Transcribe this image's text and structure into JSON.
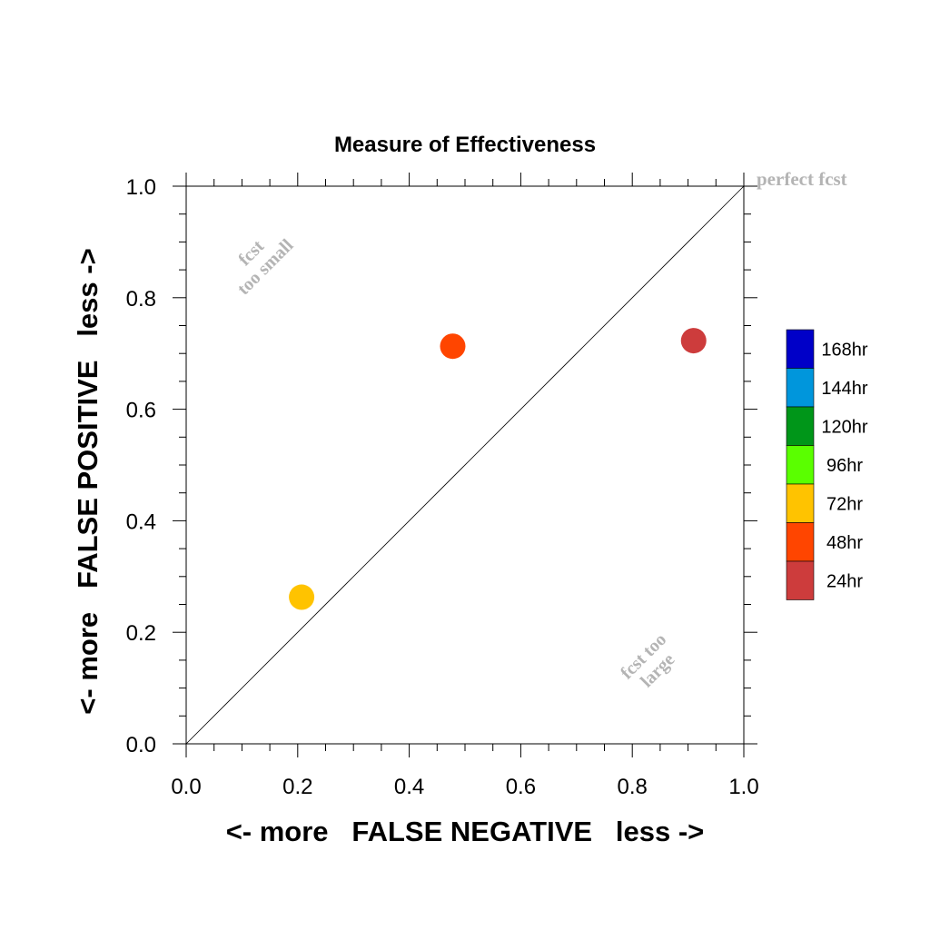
{
  "chart_data": {
    "type": "scatter",
    "title": "Measure of Effectiveness",
    "xlabel": "<- more   FALSE NEGATIVE   less ->",
    "ylabel": "<- more   FALSE POSITIVE   less ->",
    "xlim": [
      0.0,
      1.0
    ],
    "ylim": [
      0.0,
      1.0
    ],
    "x_ticks": [
      "0.0",
      "0.2",
      "0.4",
      "0.6",
      "0.8",
      "1.0"
    ],
    "y_ticks": [
      "0.0",
      "0.2",
      "0.4",
      "0.6",
      "0.8",
      "1.0"
    ],
    "grid": false,
    "diagonal_line": true,
    "annotations": {
      "perfect": "perfect fcst",
      "too_small": [
        "fcst",
        "too small"
      ],
      "too_large": [
        "fcst too",
        "large"
      ]
    },
    "legend": {
      "position": "right",
      "entries": [
        {
          "label": "168hr",
          "color": "#0000c8"
        },
        {
          "label": "144hr",
          "color": "#0096dc"
        },
        {
          "label": "120hr",
          "color": "#009619"
        },
        {
          "label": "96hr",
          "color": "#5aff00"
        },
        {
          "label": "72hr",
          "color": "#ffc300"
        },
        {
          "label": "48hr",
          "color": "#ff4500"
        },
        {
          "label": "24hr",
          "color": "#cd3c3c"
        }
      ]
    },
    "points": [
      {
        "lead": "24hr",
        "x": 0.91,
        "y": 0.723,
        "color": "#cd3c3c"
      },
      {
        "lead": "48hr",
        "x": 0.478,
        "y": 0.713,
        "color": "#ff4500"
      },
      {
        "lead": "72hr",
        "x": 0.207,
        "y": 0.263,
        "color": "#ffc300"
      }
    ]
  }
}
